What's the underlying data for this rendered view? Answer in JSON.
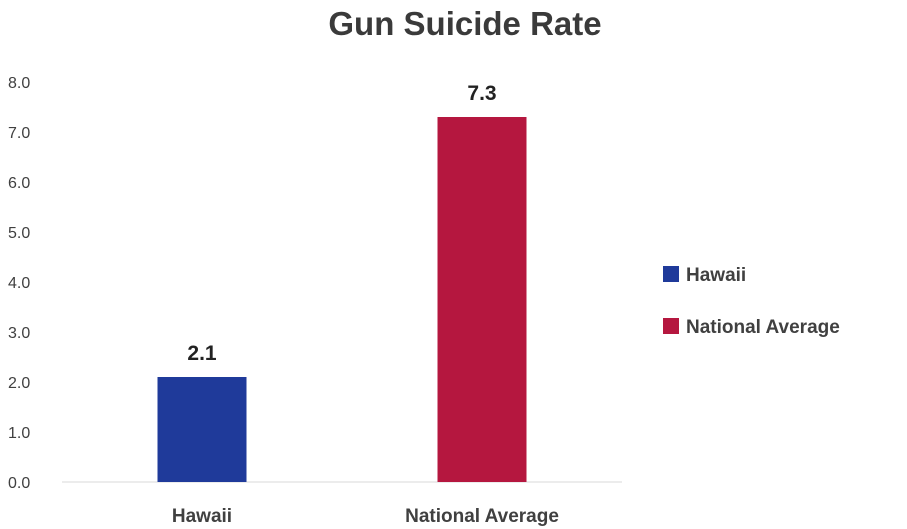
{
  "chart_data": {
    "type": "bar",
    "title": "Gun Suicide Rate",
    "xlabel": "",
    "ylabel": "",
    "categories": [
      "Hawaii",
      "National Average"
    ],
    "series": [
      {
        "name": "Hawaii",
        "color": "#1f3a9a",
        "values": [
          2.1,
          null
        ]
      },
      {
        "name": "National Average",
        "color": "#b5173f",
        "values": [
          null,
          7.3
        ]
      }
    ],
    "data_labels": [
      "2.1",
      "7.3"
    ],
    "y_ticks": [
      "0.0",
      "1.0",
      "2.0",
      "3.0",
      "4.0",
      "5.0",
      "6.0",
      "7.0",
      "8.0"
    ],
    "ylim": [
      0,
      8
    ],
    "grid": false,
    "legend_position": "right"
  }
}
